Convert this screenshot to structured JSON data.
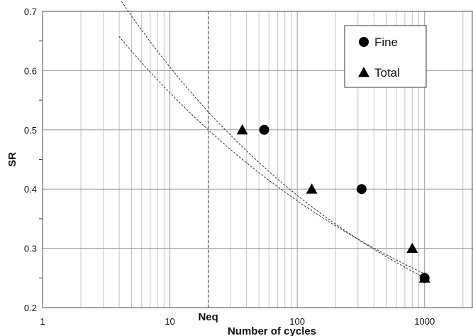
{
  "chart_data": {
    "type": "scatter",
    "xlabel": "Number of cycles",
    "ylabel": "SR",
    "xscale": "log",
    "xlim": [
      1,
      2400
    ],
    "ylim": [
      0.2,
      0.7
    ],
    "x_ticks": [
      {
        "value": 1,
        "label": "1"
      },
      {
        "value": 10,
        "label": "10"
      },
      {
        "value": 100,
        "label": "100"
      },
      {
        "value": 1000,
        "label": "1000"
      }
    ],
    "y_ticks": [
      {
        "value": 0.2,
        "label": "0.2"
      },
      {
        "value": 0.3,
        "label": "0.3"
      },
      {
        "value": 0.4,
        "label": "0.4"
      },
      {
        "value": 0.5,
        "label": "0.5"
      },
      {
        "value": 0.6,
        "label": "0.6"
      },
      {
        "value": 0.7,
        "label": "0.7"
      }
    ],
    "grid": true,
    "legend_position": "top-right",
    "series": [
      {
        "name": "Fine",
        "marker": "circle",
        "color": "#000000",
        "points": [
          [
            55,
            0.5
          ],
          [
            320,
            0.4
          ],
          [
            1000,
            0.25
          ]
        ]
      },
      {
        "name": "Total",
        "marker": "triangle",
        "color": "#000000",
        "points": [
          [
            37,
            0.5
          ],
          [
            130,
            0.4
          ],
          [
            800,
            0.3
          ],
          [
            1000,
            0.25
          ]
        ]
      }
    ],
    "trendlines": [
      {
        "series": "Fine",
        "style": "dotted",
        "a": 0.943,
        "b": -0.192
      },
      {
        "series": "Total",
        "style": "dotted",
        "a": 0.832,
        "b": -0.17
      }
    ],
    "annotations": [
      {
        "type": "vline",
        "x": 20,
        "label": "Neq",
        "style": "dashed"
      }
    ]
  }
}
